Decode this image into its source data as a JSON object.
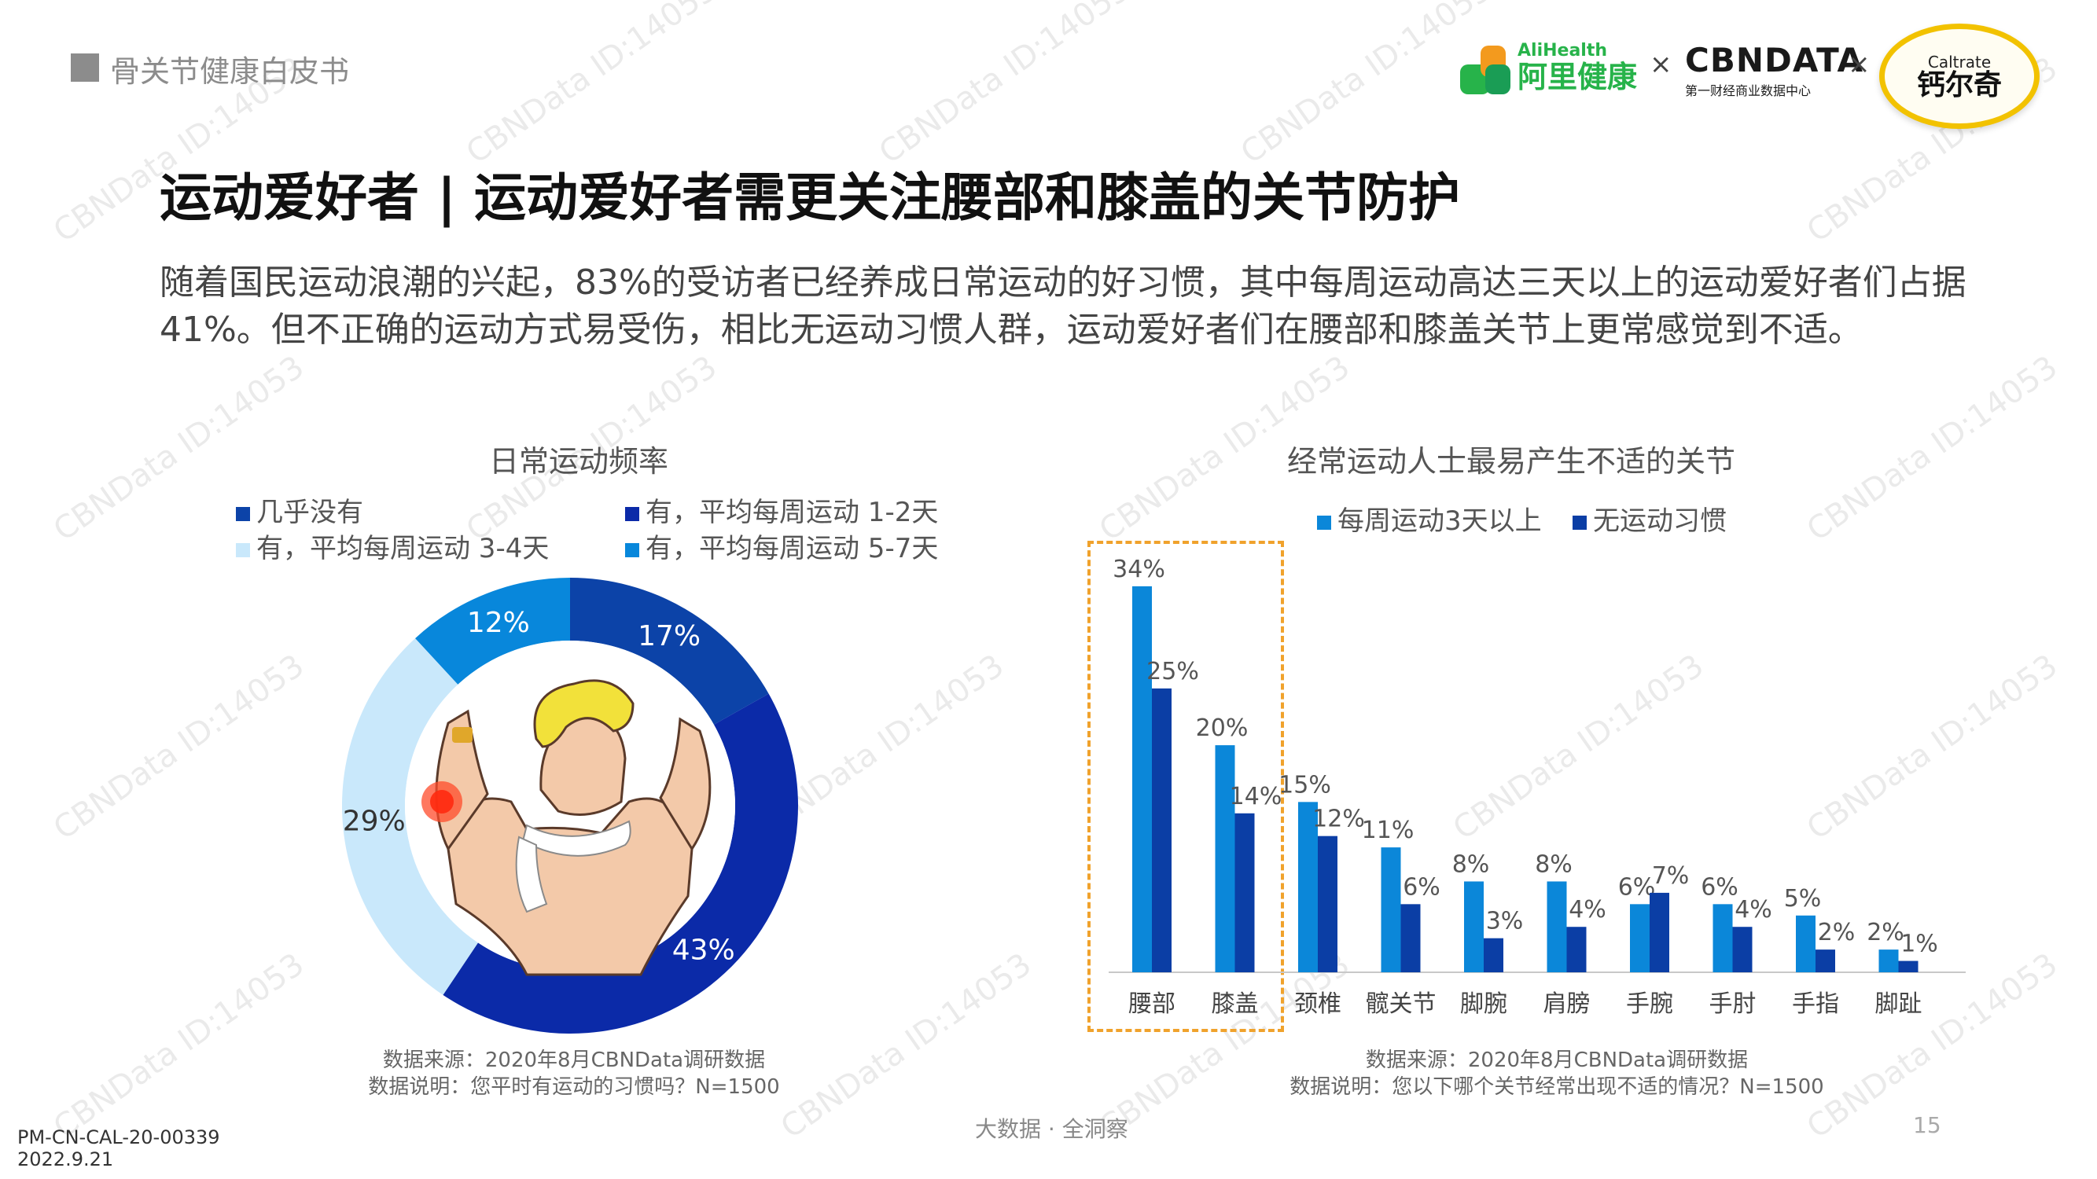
{
  "header": {
    "section_label": "骨关节健康白皮书",
    "logos": {
      "alihealth_en": "AliHealth",
      "alihealth_cn": "阿里健康",
      "separator": "×",
      "cbndata": "CBNDATA",
      "cbndata_sub": "第一财经商业数据中心",
      "caltrate_en": "Caltrate",
      "caltrate_cn": "钙尔奇"
    }
  },
  "title": "运动爱好者 | 运动爱好者需更关注腰部和膝盖的关节防护",
  "intro": "随着国民运动浪潮的兴起，83%的受访者已经养成日常运动的好习惯，其中每周运动高达三天以上的运动爱好者们占据41%。但不正确的运动方式易受伤，相比无运动习惯人群，运动爱好者们在腰部和膝盖关节上更常感觉到不适。",
  "watermark": "CBNData ID:14053",
  "chart_data": [
    {
      "type": "pie",
      "title": "日常运动频率",
      "legend_position": "top",
      "series": [
        {
          "name": "几乎没有",
          "value": 17,
          "label": "17%",
          "color": "#0c43a8"
        },
        {
          "name": "有，平均每周运动 1-2天",
          "value": 43,
          "label": "43%",
          "color": "#0b2aa8"
        },
        {
          "name": "有，平均每周运动 3-4天",
          "value": 29,
          "label": "29%",
          "color": "#c9e8fb"
        },
        {
          "name": "有，平均每周运动 5-7天",
          "value": 12,
          "label": "12%",
          "color": "#0887db"
        }
      ],
      "source": "数据来源：2020年8月CBNData调研数据",
      "note": "数据说明：您平时有运动的习惯吗？N=1500"
    },
    {
      "type": "bar",
      "title": "经常运动人士最易产生不适的关节",
      "legend_position": "top",
      "categories": [
        "腰部",
        "膝盖",
        "颈椎",
        "髋关节",
        "脚腕",
        "肩膀",
        "手腕",
        "手肘",
        "手指",
        "脚趾"
      ],
      "series": [
        {
          "name": "每周运动3天以上",
          "color": "#0b87d9",
          "values": [
            34,
            20,
            15,
            11,
            8,
            8,
            6,
            6,
            5,
            2
          ]
        },
        {
          "name": "无运动习惯",
          "color": "#0b3ea5",
          "values": [
            25,
            14,
            12,
            6,
            3,
            4,
            7,
            4,
            2,
            1
          ]
        }
      ],
      "ylim": [
        0,
        36
      ],
      "grid": false,
      "highlighted_categories": [
        "腰部",
        "膝盖"
      ],
      "source": "数据来源：2020年8月CBNData调研数据",
      "note": "数据说明：您以下哪个关节经常出现不适的情况？N=1500"
    }
  ],
  "footer": {
    "center": "大数据 · 全洞察",
    "page": "15",
    "doc_code": "PM-CN-CAL-20-00339",
    "doc_date": "2022.9.21"
  }
}
